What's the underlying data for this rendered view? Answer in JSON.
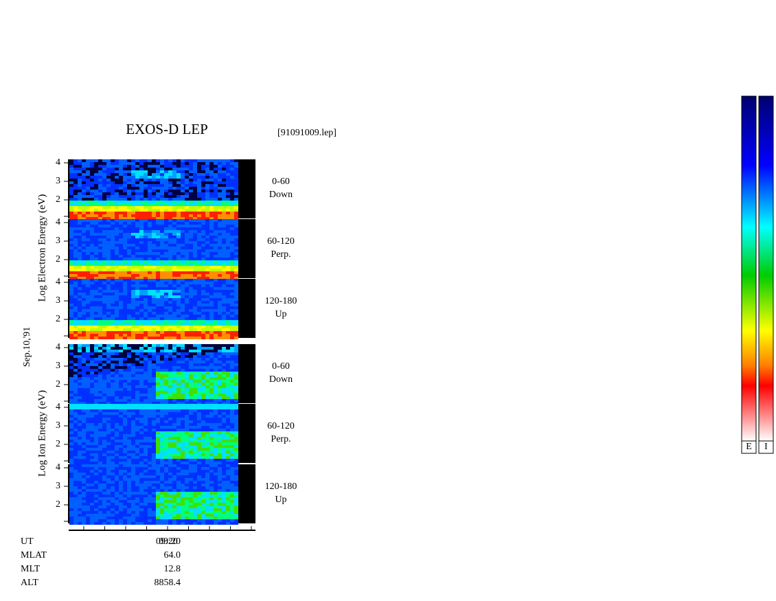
{
  "header": {
    "title": "EXOS-D LEP",
    "file": "[91091009.lep]"
  },
  "y_axis": {
    "date": "Sep.10,'91",
    "electron_label": "Log Electron Energy (eV)",
    "ion_label": "Log Ion Energy (eV)"
  },
  "panels": [
    {
      "pitch": "0-60",
      "direction": "Down",
      "yticks": [
        2,
        3,
        4
      ]
    },
    {
      "pitch": "60-120",
      "direction": "Perp.",
      "yticks": [
        2,
        3,
        4
      ]
    },
    {
      "pitch": "120-180",
      "direction": "Up",
      "yticks": [
        2,
        3,
        4
      ]
    },
    {
      "pitch": "0-60",
      "direction": "Down",
      "yticks": [
        2,
        3,
        4
      ]
    },
    {
      "pitch": "60-120",
      "direction": "Perp.",
      "yticks": [
        2,
        3,
        4
      ]
    },
    {
      "pitch": "120-180",
      "direction": "Up",
      "yticks": [
        2,
        3,
        4
      ]
    }
  ],
  "x_axis": {
    "tick_label": "09:20"
  },
  "orbit": {
    "rows": [
      [
        "UT",
        "09:20"
      ],
      [
        "MLAT",
        "64.0"
      ],
      [
        "MLT",
        "12.8"
      ],
      [
        "ALT",
        "8858.4"
      ]
    ]
  },
  "colorbars": [
    "E",
    "I"
  ]
}
